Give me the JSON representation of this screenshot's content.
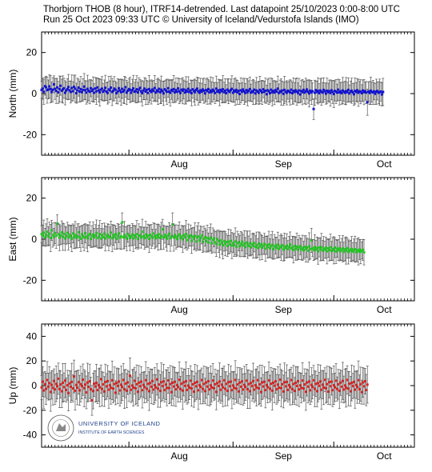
{
  "header": {
    "line1": "Thorbjorn THOB (8 hour), ITRF14-detrended.  Last datapoint 25/10/2023 0:00-8:00 UTC",
    "line2": "Run 25 Oct 2023 09:33 UTC     © University of Iceland/Vedurstofa Islands (IMO)"
  },
  "logo": {
    "name": "UNIVERSITY OF ICELAND",
    "subtitle": "INSTITUTE OF EARTH SCIENCES",
    "seal_text": "HÁSKÓLI ÍSLANDS"
  },
  "colors": {
    "north": "#1010d8",
    "east": "#22cc22",
    "up": "#e02020",
    "errorbar": "#555555",
    "axis": "#000000",
    "logo_blue": "#1e3f8a"
  },
  "chart_data": [
    {
      "type": "scatter",
      "panel": "north",
      "ylabel": "North (mm)",
      "ylim": [
        -30,
        30
      ],
      "yticks": [
        -20,
        0,
        20
      ],
      "x_tick_labels": [
        "Aug",
        "Sep",
        "Oct"
      ],
      "x_range": [
        "2023-07-06",
        "2023-10-25"
      ],
      "grid": false,
      "series": [
        {
          "x_start": "2023-07-06",
          "x_step_hours": 8,
          "values": [
            1.8,
            2.4,
            0.9,
            3.6,
            3.1,
            1.7,
            2.0,
            3.5,
            2.2,
            0.8,
            1.9,
            4.5,
            2.3,
            1.3,
            3.0,
            0.6,
            2.2,
            3.8,
            1.4,
            2.0,
            2.6,
            0.4,
            1.5,
            2.1,
            3.2,
            1.6,
            0.8,
            2.7,
            1.2,
            3.3,
            2.4,
            0.2,
            1.6,
            2.9,
            1.0,
            2.2,
            0.7,
            1.8,
            3.4,
            1.7,
            0.5,
            2.3,
            1.4,
            0.9,
            2.6,
            1.3,
            2.0,
            0.4,
            2.5,
            1.1,
            3.0,
            1.6,
            0.6,
            1.9,
            2.4,
            0.9,
            1.5,
            2.8,
            1.0,
            0.3,
            2.0,
            1.6,
            2.9,
            0.8,
            1.3,
            2.4,
            1.9,
            0.2,
            1.1,
            2.6,
            1.5,
            0.7,
            2.3,
            1.0,
            1.7,
            3.1,
            0.5,
            1.4,
            2.2,
            1.8,
            0.4,
            1.6,
            2.5,
            0.9,
            1.2,
            2.1,
            0.6,
            1.9,
            2.8,
            1.1,
            0.2,
            1.5,
            2.4,
            1.0,
            1.8,
            0.3,
            2.2,
            1.4,
            0.8,
            2.0,
            1.3,
            2.7,
            0.5,
            1.6,
            1.1,
            2.3,
            0.7,
            1.9,
            1.2,
            0.1,
            2.1,
            1.5,
            0.9,
            2.6,
            1.0,
            0.4,
            1.8,
            1.3,
            2.2,
            0.6,
            1.7,
            0.9,
            2.5,
            1.2,
            0.3,
            1.9,
            1.4,
            2.0,
            0.5,
            1.6,
            1.0,
            2.3,
            0.8,
            1.5,
            0.2,
            2.1,
            1.3,
            0.7,
            1.8,
            2.4,
            1.1,
            0.4,
            1.6,
            0.9,
            2.0,
            1.4,
            0.1,
            1.7,
            1.2,
            2.2,
            0.6,
            1.5,
            0.8,
            1.9,
            1.3,
            0.3,
            2.4,
            1.0,
            1.6,
            0.5,
            1.8,
            1.1,
            2.1,
            0.7,
            1.4,
            0.2,
            1.9,
            1.2,
            0.8,
            1.7,
            2.3,
            0.4,
            1.5,
            1.0,
            1.8,
            0.6,
            1.3,
            -0.2,
            1.6,
            0.9,
            2.0,
            1.1,
            0.3,
            1.7,
            0.7,
            1.4,
            2.2,
            0.5,
            1.2,
            0.8,
            1.9,
            0.1,
            1.5,
            1.0,
            0.4,
            1.8,
            1.3,
            0.6,
            2.1,
            0.9,
            1.4,
            -0.3,
            1.6,
            1.1,
            0.2,
            1.9,
            0.7,
            1.3,
            0.5,
            1.7,
            1.0,
            2.4,
            0.3,
            1.2,
            0.8,
            1.5,
            -0.1,
            1.8,
            0.9,
            0.4,
            1.4,
            1.1,
            0.6,
            1.9,
            0.2,
            1.3,
            0.8,
            1.6,
            1.0,
            0.3,
            1.5,
            -0.4,
            1.2,
            0.7,
            1.8,
            0.5,
            1.1,
            2.0,
            0.9,
            0.1,
            1.4,
            0.6,
            1.2,
            -7.5,
            0.4,
            1.7,
            0.8,
            1.3,
            0.2,
            1.5,
            0.9,
            0.5,
            1.8,
            1.1,
            0.0,
            1.4,
            0.7,
            1.2,
            0.3,
            1.6,
            0.8,
            -0.2,
            1.3,
            1.0,
            0.5,
            1.9,
            0.6,
            1.1,
            0.2,
            1.5,
            0.9,
            0.4,
            1.2,
            0.7,
            1.8,
            0.1,
            1.0,
            1.4,
            0.6,
            -0.3,
            1.3,
            0.8,
            1.6,
            0.4,
            1.1,
            0.9,
            0.2,
            1.5,
            0.7,
            1.2,
            0.5,
            -4.2,
            1.0,
            0.3,
            1.4,
            0.8,
            0.6,
            1.1,
            -0.1,
            0.9,
            1.3,
            0.4,
            0.7,
            1.0,
            -0.4,
            0.8
          ]
        }
      ]
    },
    {
      "type": "scatter",
      "panel": "east",
      "ylabel": "East (mm)",
      "ylim": [
        -30,
        30
      ],
      "yticks": [
        -20,
        0,
        20
      ],
      "x_tick_labels": [
        "Aug",
        "Sep",
        "Oct"
      ],
      "x_range": [
        "2023-07-06",
        "2023-10-25"
      ],
      "grid": false,
      "series": [
        {
          "x_start": "2023-07-06",
          "x_step_hours": 8,
          "values": [
            2.5,
            1.8,
            3.2,
            0.9,
            2.1,
            3.6,
            1.4,
            2.7,
            0.6,
            4.3,
            2.0,
            1.1,
            3.0,
            1.7,
            7.5,
            2.4,
            0.8,
            1.9,
            3.3,
            1.2,
            2.6,
            0.4,
            1.7,
            3.1,
            0.9,
            2.2,
            1.5,
            0.3,
            2.8,
            1.1,
            2.0,
            0.7,
            1.6,
            3.4,
            1.0,
            0.2,
            2.3,
            1.4,
            0.8,
            2.9,
            1.3,
            0.5,
            1.9,
            2.6,
            0.1,
            1.5,
            2.2,
            0.9,
            1.7,
            3.0,
            0.6,
            1.2,
            2.5,
            0.3,
            1.8,
            1.0,
            2.7,
            0.4,
            1.6,
            2.1,
            0.8,
            1.3,
            3.2,
            0.5,
            1.9,
            1.1,
            2.4,
            0.2,
            1.5,
            2.8,
            0.7,
            1.4,
            8.2,
            0.9,
            2.0,
            1.2,
            0.3,
            2.6,
            1.7,
            0.6,
            1.3,
            2.2,
            0.4,
            1.8,
            1.0,
            2.5,
            0.1,
            1.6,
            2.0,
            0.8,
            3.6,
            1.4,
            0.5,
            2.3,
            1.1,
            1.7,
            0.2,
            2.1,
            1.3,
            0.7,
            2.8,
            1.5,
            0.4,
            1.9,
            1.0,
            2.4,
            0.6,
            1.6,
            4.8,
            0.9,
            2.2,
            1.2,
            0.3,
            1.8,
            2.7,
            0.5,
            1.4,
            7.2,
            0.8,
            2.0,
            1.1,
            0.1,
            1.7,
            2.3,
            0.6,
            1.3,
            0.0,
            1.9,
            1.0,
            2.5,
            -0.4,
            1.5,
            0.7,
            1.8,
            -0.8,
            1.2,
            0.3,
            1.6,
            -1.1,
            0.9,
            1.4,
            -0.5,
            0.6,
            1.8,
            -1.3,
            0.2,
            1.0,
            -0.9,
            0.5,
            -1.6,
            0.1,
            0.8,
            -2.0,
            -0.4,
            0.4,
            -1.5,
            -2.3,
            0.0,
            -1.0,
            -2.6,
            -0.6,
            -1.8,
            -3.0,
            -0.9,
            -2.2,
            -1.4,
            -3.3,
            -1.2,
            -2.5,
            -0.8,
            -3.1,
            -1.9,
            -2.8,
            -1.1,
            -3.6,
            -2.0,
            -1.5,
            -3.4,
            -2.4,
            -1.2,
            -3.0,
            -2.2,
            -3.8,
            -1.6,
            -2.7,
            -3.3,
            -1.9,
            -4.0,
            -2.5,
            -3.1,
            -1.8,
            -3.7,
            -2.9,
            -4.3,
            -2.1,
            -3.5,
            -2.6,
            -4.1,
            -3.2,
            -2.3,
            -4.6,
            -3.0,
            -3.8,
            -2.5,
            -4.4,
            -3.4,
            -2.8,
            -4.9,
            -3.6,
            -3.1,
            -4.2,
            -2.7,
            -4.7,
            -3.5,
            -3.9,
            -2.9,
            -5.0,
            -3.7,
            -4.3,
            -3.2,
            -4.8,
            -3.8,
            -2.6,
            -4.5,
            -3.9,
            -5.2,
            -3.3,
            -4.6,
            -3.6,
            -5.1,
            -4.0,
            -3.4,
            -4.9,
            -4.2,
            -5.4,
            -3.7,
            -4.7,
            -4.1,
            -5.6,
            -3.5,
            -4.8,
            -0.6,
            -4.4,
            -5.3,
            -3.9,
            -5.0,
            -4.3,
            -5.8,
            -4.0,
            -4.9,
            -3.8,
            -5.5,
            -4.6,
            -5.1,
            -4.2,
            -5.9,
            -4.5,
            -5.2,
            -3.9,
            -5.7,
            -4.8,
            -5.4,
            -4.1,
            -6.0,
            -4.7,
            -5.3,
            -4.4,
            -5.8,
            -5.0,
            -4.6,
            -6.1,
            -4.9,
            -5.5,
            -4.3,
            -6.2,
            -5.1,
            -5.6,
            -4.8,
            -6.0,
            -5.3,
            -4.9,
            -6.3,
            -5.4,
            -5.9,
            -5.0,
            -6.1,
            -5.5,
            -5.2,
            -6.4
          ]
        }
      ]
    },
    {
      "type": "scatter",
      "panel": "up",
      "ylabel": "Up (mm)",
      "ylim": [
        -50,
        50
      ],
      "yticks": [
        -40,
        -20,
        0,
        20,
        40
      ],
      "x_tick_labels": [
        "Aug",
        "Sep",
        "Oct"
      ],
      "x_range": [
        "2023-07-06",
        "2023-10-25"
      ],
      "grid": false,
      "series": [
        {
          "x_start": "2023-07-06",
          "x_step_hours": 8,
          "values": [
            -1.5,
            3.2,
            -4.0,
            1.1,
            -2.6,
            4.5,
            -0.8,
            2.0,
            -5.2,
            0.6,
            -1.9,
            3.8,
            -3.1,
            1.4,
            -0.5,
            5.6,
            -2.8,
            0.9,
            -4.6,
            2.3,
            -1.2,
            4.1,
            -3.5,
            0.3,
            -6.0,
            1.8,
            -0.9,
            3.0,
            -2.3,
            7.4,
            -4.2,
            0.5,
            -1.7,
            2.8,
            -3.8,
            1.2,
            -0.4,
            4.8,
            -2.1,
            0.8,
            -5.5,
            2.5,
            -1.0,
            3.5,
            -3.0,
            -12.0,
            -4.4,
            1.5,
            -0.7,
            2.2,
            -3.6,
            0.4,
            -1.4,
            5.2,
            -2.7,
            1.0,
            -4.8,
            2.9,
            -0.6,
            3.6,
            -3.3,
            0.2,
            -1.8,
            4.3,
            -2.4,
            1.3,
            -5.8,
            2.1,
            -0.3,
            3.3,
            -3.9,
            0.7,
            -1.1,
            4.6,
            -2.9,
            1.6,
            -4.1,
            2.6,
            -0.8,
            8.0,
            -3.4,
            0.1,
            -1.6,
            3.9,
            -2.2,
            1.1,
            -5.0,
            2.4,
            -0.5,
            3.2,
            -3.7,
            0.6,
            -1.3,
            4.4,
            -2.6,
            1.4,
            -4.5,
            2.0,
            -0.9,
            3.7,
            -3.2,
            0.3,
            -1.5,
            5.0,
            -2.5,
            0.9,
            -4.3,
            2.7,
            -0.4,
            3.4,
            -3.6,
            0.8,
            -1.9,
            4.2,
            -2.0,
            1.2,
            -5.3,
            2.3,
            -0.7,
            3.1,
            -3.0,
            0.5,
            -1.2,
            4.7,
            -2.8,
            1.5,
            -4.0,
            2.6,
            -0.2,
            3.5,
            -3.5,
            0.0,
            -1.7,
            4.0,
            -2.3,
            1.0,
            -4.9,
            2.2,
            -0.6,
            3.0,
            -3.8,
            0.4,
            -1.0,
            4.5,
            -2.7,
            1.3,
            -4.4,
            2.5,
            -0.8,
            3.6,
            -3.1,
            0.2,
            -1.6,
            4.1,
            -2.1,
            1.1,
            -5.1,
            2.0,
            -0.3,
            3.3,
            -3.4,
            0.7,
            -1.4,
            4.3,
            -2.6,
            1.4,
            -4.2,
            2.8,
            -0.5,
            3.2,
            -3.7,
            0.1,
            -1.8,
            4.6,
            -2.4,
            0.9,
            -4.7,
            2.4,
            -0.9,
            3.4,
            -3.2,
            0.6,
            -1.1,
            4.0,
            -2.9,
            1.2,
            -4.6,
            2.1,
            -0.4,
            3.7,
            -3.3,
            0.3,
            -1.5,
            4.4,
            -2.2,
            1.0,
            -5.2,
            2.6,
            -0.7,
            3.1,
            -3.6,
            0.5,
            -1.3,
            4.2,
            -2.5,
            1.5,
            -4.1,
            2.3,
            -0.1,
            3.5,
            -3.0,
            0.8,
            -1.7,
            4.8,
            -2.0,
            1.1,
            -4.8,
            2.7,
            -0.6,
            3.0,
            -3.5,
            0.4,
            -1.2,
            4.5,
            -2.8,
            1.3,
            -4.3,
            2.2,
            -0.3,
            3.6,
            -3.1,
            0.2,
            -1.9,
            4.1,
            -2.3,
            0.9,
            -5.0,
            2.5,
            -0.8,
            3.3,
            -3.8,
            0.6,
            -1.0,
            4.3,
            -2.6,
            1.4,
            -4.5,
            2.0,
            -0.2,
            3.4,
            -3.4,
            0.7,
            -1.6,
            4.7,
            -2.1,
            1.2,
            -4.9,
            2.8,
            -0.5,
            3.2,
            -3.7,
            0.3,
            -1.4,
            4.0,
            -2.7,
            1.0,
            -4.2,
            2.4,
            -0.9,
            3.8,
            -3.2,
            0.1,
            -1.8,
            4.6,
            -2.4,
            1.5,
            -4.6,
            2.1,
            -0.4,
            3.0,
            -3.3,
            0.5,
            -1.1,
            4.4,
            -2.9,
            1.1,
            -5.3,
            2.6,
            -0.6,
            3.5,
            -3.6,
            0.8
          ]
        }
      ]
    }
  ]
}
